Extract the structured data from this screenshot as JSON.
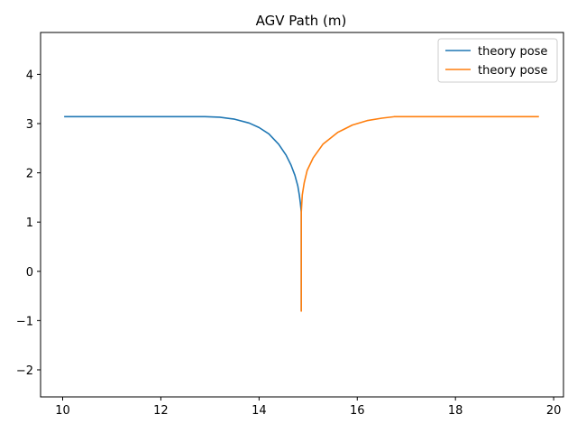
{
  "chart_data": {
    "type": "line",
    "title": "AGV Path (m)",
    "xlabel": "",
    "ylabel": "",
    "xlim": [
      9.55,
      20.2
    ],
    "ylim": [
      -2.55,
      4.85
    ],
    "x_ticks": [
      10,
      12,
      14,
      16,
      18,
      20
    ],
    "y_ticks": [
      -2,
      -1,
      0,
      1,
      2,
      3,
      4
    ],
    "x_tick_labels": [
      "10",
      "12",
      "14",
      "16",
      "18",
      "20"
    ],
    "y_tick_labels": [
      "−2",
      "−1",
      "0",
      "1",
      "2",
      "3",
      "4"
    ],
    "grid": false,
    "legend": {
      "placement": "top-right"
    },
    "series": [
      {
        "name": "theory pose",
        "color": "#1f77b4",
        "points": [
          [
            10.03,
            3.14
          ],
          [
            10.1,
            3.14
          ],
          [
            11.0,
            3.14
          ],
          [
            12.0,
            3.14
          ],
          [
            12.9,
            3.14
          ],
          [
            13.2,
            3.13
          ],
          [
            13.5,
            3.09
          ],
          [
            13.8,
            3.01
          ],
          [
            14.0,
            2.92
          ],
          [
            14.2,
            2.79
          ],
          [
            14.4,
            2.58
          ],
          [
            14.55,
            2.36
          ],
          [
            14.65,
            2.16
          ],
          [
            14.73,
            1.95
          ],
          [
            14.79,
            1.73
          ],
          [
            14.82,
            1.55
          ],
          [
            14.84,
            1.4
          ],
          [
            14.86,
            1.2
          ],
          [
            14.86,
            -0.8
          ]
        ]
      },
      {
        "name": "theory pose",
        "color": "#ff7f0e",
        "points": [
          [
            14.86,
            -0.82
          ],
          [
            14.86,
            1.2
          ],
          [
            14.88,
            1.55
          ],
          [
            14.92,
            1.8
          ],
          [
            14.98,
            2.05
          ],
          [
            15.1,
            2.3
          ],
          [
            15.3,
            2.58
          ],
          [
            15.6,
            2.82
          ],
          [
            15.9,
            2.97
          ],
          [
            16.2,
            3.06
          ],
          [
            16.5,
            3.11
          ],
          [
            16.75,
            3.14
          ],
          [
            17.5,
            3.14
          ],
          [
            18.5,
            3.14
          ],
          [
            19.7,
            3.14
          ]
        ]
      }
    ]
  }
}
